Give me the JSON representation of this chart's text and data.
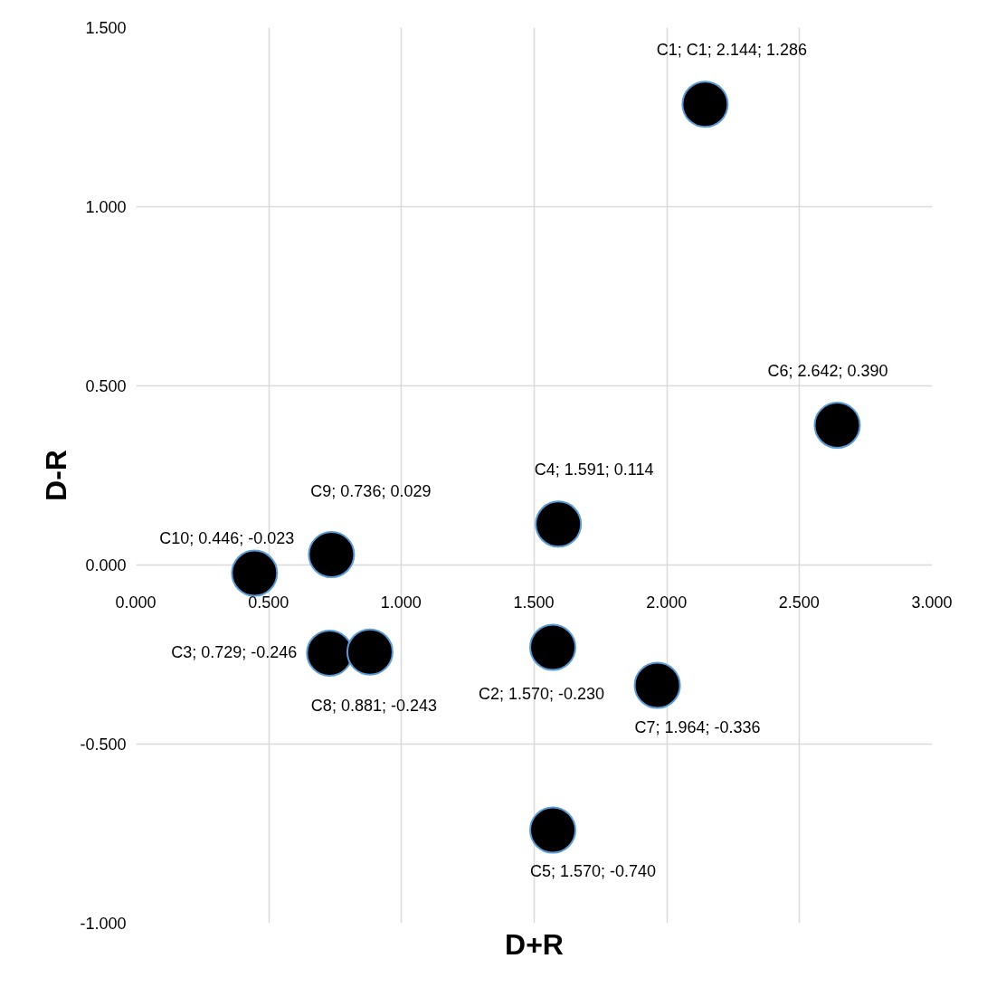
{
  "chart_data": {
    "type": "scatter",
    "xlabel": "D+R",
    "ylabel": "D-R",
    "x": [
      2.144,
      1.57,
      0.729,
      1.591,
      1.57,
      2.642,
      1.964,
      0.881,
      0.736,
      0.446
    ],
    "series": [
      {
        "color": "#000000",
        "values": [
          1.286,
          -0.23,
          -0.246,
          0.114,
          -0.74,
          0.39,
          -0.336,
          -0.243,
          0.029,
          -0.023
        ],
        "value_labels": [
          "C1; C1; 2.144; 1.286",
          "C2; 1.570; -0.230",
          "C3; 0.729; -0.246",
          "C4; 1.591; 0.114",
          "C5; 1.570; -0.740",
          "C6; 2.642; 0.390",
          "C7; 1.964; -0.336",
          "C8; 0.881; -0.243",
          "C9; 0.736; 0.029",
          "C10; 0.446; -0.023"
        ]
      }
    ],
    "xlim": [
      0,
      3
    ],
    "ylim": [
      -1,
      1.5
    ],
    "xticks": [
      {
        "value": 0,
        "label": "0.000"
      },
      {
        "value": 0.5,
        "label": "0.500"
      },
      {
        "value": 1,
        "label": "1.000"
      },
      {
        "value": 1.5,
        "label": "1.500"
      },
      {
        "value": 2,
        "label": "2.000"
      },
      {
        "value": 2.5,
        "label": "2.500"
      },
      {
        "value": 3,
        "label": "3.000"
      }
    ],
    "yticks": [
      {
        "value": -1,
        "label": "-1.000"
      },
      {
        "value": -0.5,
        "label": "-0.500"
      },
      {
        "value": 0,
        "label": "0.000"
      },
      {
        "value": 0.5,
        "label": "0.500"
      },
      {
        "value": 1,
        "label": "1.000"
      },
      {
        "value": 1.5,
        "label": "1.500"
      }
    ],
    "grid": true,
    "marker": "circle"
  }
}
